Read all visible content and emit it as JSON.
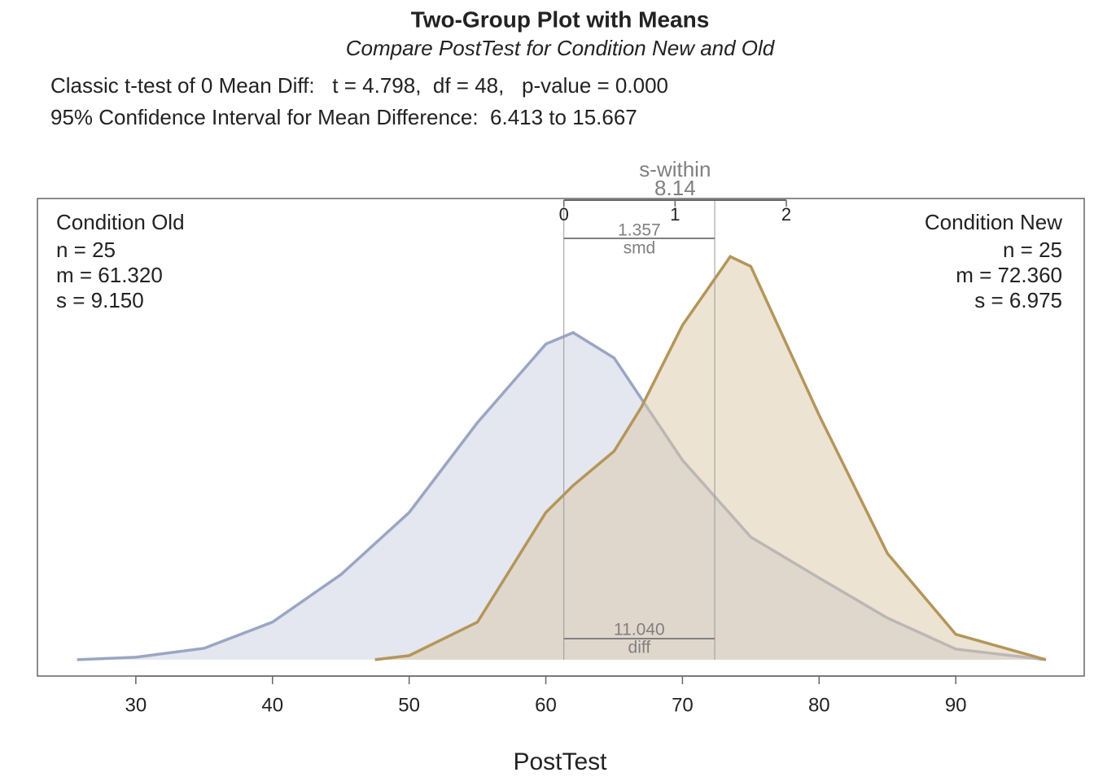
{
  "chart_data": {
    "type": "density",
    "title": "Two-Group Plot with Means",
    "subtitle": "Compare PostTest for Condition New and Old",
    "stats": [
      "Classic t-test of 0 Mean Diff:   t = 4.798,  df = 48,   p-value = 0.000",
      "95% Confidence Interval for Mean Difference:  6.413 to 15.667"
    ],
    "x_label": "PostTest",
    "xlim": [
      22.8,
      99.4
    ],
    "xticks": [
      30,
      40,
      50,
      60,
      70,
      80,
      90
    ],
    "ylim": [
      -0.002,
      0.0564
    ],
    "s_within": {
      "label": "s-within",
      "value": 8.14
    },
    "smd_ticks": [
      0,
      1,
      2
    ],
    "smd": {
      "label": "smd",
      "value": 1.357
    },
    "diff": {
      "label": "diff",
      "value": 11.04,
      "value_label": "11.040"
    },
    "series": [
      {
        "name": "Condition Old",
        "side": "left",
        "color": "#9aa6c2",
        "fill": "#c9cde1",
        "mean": 61.32,
        "info": [
          "n = 25",
          "m = 61.320",
          "s = 9.150"
        ],
        "x": [
          25.7,
          30,
          35,
          40,
          45,
          50,
          55,
          60,
          62,
          65,
          70,
          75,
          80,
          85,
          90,
          96.6
        ],
        "values": [
          0,
          0.0003,
          0.0014,
          0.0046,
          0.0104,
          0.018,
          0.029,
          0.0386,
          0.04,
          0.0369,
          0.0244,
          0.015,
          0.01,
          0.0051,
          0.0013,
          0
        ]
      },
      {
        "name": "Condition New",
        "side": "right",
        "color": "#b4965a",
        "fill": "#dbc7a7",
        "mean": 72.36,
        "info": [
          "n = 25",
          "m = 72.360",
          "s = 6.975"
        ],
        "x": [
          47.5,
          50,
          55,
          60,
          62,
          65,
          67,
          70,
          73.5,
          75,
          80,
          85,
          90,
          96.6
        ],
        "values": [
          0,
          0.0005,
          0.0046,
          0.018,
          0.0213,
          0.0255,
          0.0309,
          0.0409,
          0.0493,
          0.0481,
          0.0299,
          0.013,
          0.0031,
          0
        ]
      }
    ]
  }
}
